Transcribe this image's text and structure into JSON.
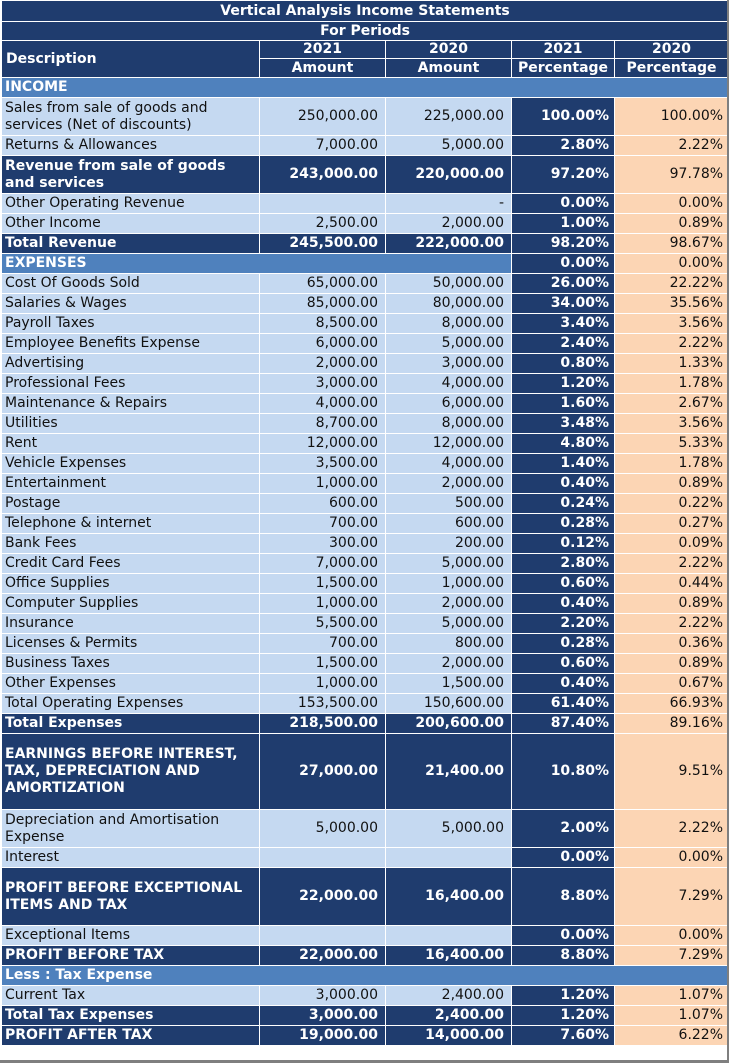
{
  "title": "Vertical Analysis Income Statements",
  "subtitle": "For Periods",
  "headers": {
    "description": "Description",
    "year_2021": "2021",
    "year_2020": "2020",
    "amount": "Amount",
    "percentage": "Percentage"
  },
  "colors": {
    "dark_navy": "#1f3c6e",
    "section_blue": "#4f81bd",
    "light_blue": "#c5d9f1",
    "peach": "#fcd5b4",
    "header_red": "#e26b5a"
  },
  "rows": [
    {
      "style": "sec full",
      "label": "INCOME",
      "a21": "",
      "a20": "",
      "p21": "",
      "p20": "",
      "span": true
    },
    {
      "style": "",
      "label": "Sales from sale of goods and services (Net of discounts)",
      "a21": "250,000.00",
      "a20": "225,000.00",
      "p21": "100.00%",
      "p20": "100.00%",
      "h": 38
    },
    {
      "style": "",
      "label": "Returns & Allowances",
      "a21": "7,000.00",
      "a20": "5,000.00",
      "p21": "2.80%",
      "p20": "2.22%"
    },
    {
      "style": "hl",
      "label": "Revenue from sale of goods and services",
      "a21": "243,000.00",
      "a20": "220,000.00",
      "p21": "97.20%",
      "p20": "97.78%",
      "h": 38
    },
    {
      "style": "",
      "label": "Other Operating Revenue",
      "a21": "",
      "a20": "-",
      "p21": "0.00%",
      "p20": "0.00%"
    },
    {
      "style": "",
      "label": "Other Income",
      "a21": "2,500.00",
      "a20": "2,000.00",
      "p21": "1.00%",
      "p20": "0.89%"
    },
    {
      "style": "hl",
      "label": "Total Revenue",
      "a21": "245,500.00",
      "a20": "222,000.00",
      "p21": "98.20%",
      "p20": "98.67%"
    },
    {
      "style": "sec",
      "label": "EXPENSES",
      "a21": "",
      "a20": "",
      "p21": "0.00%",
      "p20": "0.00%",
      "span3": true
    },
    {
      "style": "",
      "label": "Cost Of Goods Sold",
      "a21": "65,000.00",
      "a20": "50,000.00",
      "p21": "26.00%",
      "p20": "22.22%"
    },
    {
      "style": "",
      "label": "Salaries & Wages",
      "a21": "85,000.00",
      "a20": "80,000.00",
      "p21": "34.00%",
      "p20": "35.56%"
    },
    {
      "style": "",
      "label": "Payroll Taxes",
      "a21": "8,500.00",
      "a20": "8,000.00",
      "p21": "3.40%",
      "p20": "3.56%"
    },
    {
      "style": "",
      "label": "Employee Benefits Expense",
      "a21": "6,000.00",
      "a20": "5,000.00",
      "p21": "2.40%",
      "p20": "2.22%"
    },
    {
      "style": "",
      "label": "Advertising",
      "a21": "2,000.00",
      "a20": "3,000.00",
      "p21": "0.80%",
      "p20": "1.33%"
    },
    {
      "style": "",
      "label": "Professional Fees",
      "a21": "3,000.00",
      "a20": "4,000.00",
      "p21": "1.20%",
      "p20": "1.78%"
    },
    {
      "style": "",
      "label": "Maintenance & Repairs",
      "a21": "4,000.00",
      "a20": "6,000.00",
      "p21": "1.60%",
      "p20": "2.67%"
    },
    {
      "style": "",
      "label": "Utilities",
      "a21": "8,700.00",
      "a20": "8,000.00",
      "p21": "3.48%",
      "p20": "3.56%"
    },
    {
      "style": "",
      "label": "Rent",
      "a21": "12,000.00",
      "a20": "12,000.00",
      "p21": "4.80%",
      "p20": "5.33%"
    },
    {
      "style": "",
      "label": "Vehicle Expenses",
      "a21": "3,500.00",
      "a20": "4,000.00",
      "p21": "1.40%",
      "p20": "1.78%"
    },
    {
      "style": "",
      "label": "Entertainment",
      "a21": "1,000.00",
      "a20": "2,000.00",
      "p21": "0.40%",
      "p20": "0.89%"
    },
    {
      "style": "",
      "label": "Postage",
      "a21": "600.00",
      "a20": "500.00",
      "p21": "0.24%",
      "p20": "0.22%"
    },
    {
      "style": "",
      "label": "Telephone & internet",
      "a21": "700.00",
      "a20": "600.00",
      "p21": "0.28%",
      "p20": "0.27%"
    },
    {
      "style": "",
      "label": "Bank Fees",
      "a21": "300.00",
      "a20": "200.00",
      "p21": "0.12%",
      "p20": "0.09%"
    },
    {
      "style": "",
      "label": "Credit Card Fees",
      "a21": "7,000.00",
      "a20": "5,000.00",
      "p21": "2.80%",
      "p20": "2.22%"
    },
    {
      "style": "",
      "label": "Office Supplies",
      "a21": "1,500.00",
      "a20": "1,000.00",
      "p21": "0.60%",
      "p20": "0.44%"
    },
    {
      "style": "",
      "label": "Computer Supplies",
      "a21": "1,000.00",
      "a20": "2,000.00",
      "p21": "0.40%",
      "p20": "0.89%"
    },
    {
      "style": "",
      "label": "Insurance",
      "a21": "5,500.00",
      "a20": "5,000.00",
      "p21": "2.20%",
      "p20": "2.22%"
    },
    {
      "style": "",
      "label": "Licenses & Permits",
      "a21": "700.00",
      "a20": "800.00",
      "p21": "0.28%",
      "p20": "0.36%"
    },
    {
      "style": "",
      "label": "Business Taxes",
      "a21": "1,500.00",
      "a20": "2,000.00",
      "p21": "0.60%",
      "p20": "0.89%"
    },
    {
      "style": "",
      "label": "Other Expenses",
      "a21": "1,000.00",
      "a20": "1,500.00",
      "p21": "0.40%",
      "p20": "0.67%"
    },
    {
      "style": "",
      "label": "Total Operating Expenses",
      "a21": "153,500.00",
      "a20": "150,600.00",
      "p21": "61.40%",
      "p20": "66.93%"
    },
    {
      "style": "hl",
      "label": "Total Expenses",
      "a21": "218,500.00",
      "a20": "200,600.00",
      "p21": "87.40%",
      "p20": "89.16%"
    },
    {
      "style": "hl",
      "label": "EARNINGS BEFORE INTEREST, TAX, DEPRECIATION AND AMORTIZATION",
      "a21": "27,000.00",
      "a20": "21,400.00",
      "p21": "10.80%",
      "p20": "9.51%",
      "h": 76
    },
    {
      "style": "",
      "label": "Depreciation and Amortisation Expense",
      "a21": "5,000.00",
      "a20": "5,000.00",
      "p21": "2.00%",
      "p20": "2.22%",
      "h": 38
    },
    {
      "style": "",
      "label": "Interest",
      "a21": "",
      "a20": "",
      "p21": "0.00%",
      "p20": "0.00%"
    },
    {
      "style": "hl",
      "label": "PROFIT BEFORE EXCEPTIONAL ITEMS AND TAX",
      "a21": "22,000.00",
      "a20": "16,400.00",
      "p21": "8.80%",
      "p20": "7.29%",
      "h": 58
    },
    {
      "style": "",
      "label": "Exceptional Items",
      "a21": "",
      "a20": "",
      "p21": "0.00%",
      "p20": "0.00%"
    },
    {
      "style": "hl",
      "label": "PROFIT BEFORE TAX",
      "a21": "22,000.00",
      "a20": "16,400.00",
      "p21": "8.80%",
      "p20": "7.29%"
    },
    {
      "style": "sec full",
      "label": "Less : Tax Expense",
      "a21": "",
      "a20": "",
      "p21": "",
      "p20": "",
      "span": true
    },
    {
      "style": "",
      "label": "Current Tax",
      "a21": "3,000.00",
      "a20": "2,400.00",
      "p21": "1.20%",
      "p20": "1.07%"
    },
    {
      "style": "hl",
      "label": "Total Tax Expenses",
      "a21": "3,000.00",
      "a20": "2,400.00",
      "p21": "1.20%",
      "p20": "1.07%"
    },
    {
      "style": "hl",
      "label": "PROFIT AFTER TAX",
      "a21": "19,000.00",
      "a20": "14,000.00",
      "p21": "7.60%",
      "p20": "6.22%"
    }
  ]
}
